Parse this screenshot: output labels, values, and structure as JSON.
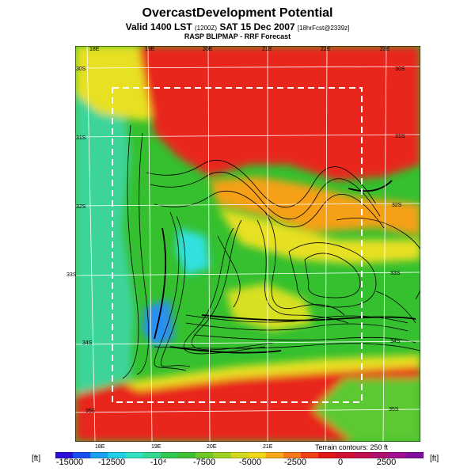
{
  "header": {
    "title": "OvercastDevelopment Potential",
    "valid_prefix": "Valid 1400 LST",
    "valid_paren": "(1200Z)",
    "valid_date": "SAT 15 Dec 2007",
    "valid_suffix": "[18hrFcst@2339z]",
    "model": "RASP BLIPMAP - RRF Forecast"
  },
  "map": {
    "lon_ticks_top": [
      "18E",
      "19E",
      "20E",
      "21E",
      "22E",
      "23E"
    ],
    "lon_ticks_bottom": [
      "18E",
      "19E",
      "20E",
      "21E"
    ],
    "lat_ticks_left": [
      "30S",
      "31S",
      "32S",
      "33S",
      "34S",
      "35S"
    ],
    "lat_ticks_right": [
      "30S",
      "31S",
      "32S",
      "33S",
      "34S",
      "35S"
    ],
    "terrain_note": "Terrain contours: 250 ft",
    "border_style": "dashed",
    "grid": true,
    "colors": {
      "high": "#e8251e",
      "mid": "#f7d410",
      "low": "#34c02f",
      "lowest": "#32d7b3",
      "contour": "#000000"
    }
  },
  "colorbar": {
    "unit_left": "[ft]",
    "unit_right": "[ft]",
    "labels": [
      "-15000",
      "-12500",
      "-10⁴",
      "-7500",
      "-5000",
      "-2500",
      "0",
      "2500"
    ],
    "colors": [
      "#2a10d8",
      "#1a50f0",
      "#1aa0f0",
      "#20d0e8",
      "#30e0c0",
      "#35d890",
      "#30c850",
      "#40c030",
      "#70c828",
      "#a0d020",
      "#d0d820",
      "#f0d818",
      "#f8a818",
      "#f87818",
      "#f04018",
      "#e01818",
      "#d01030",
      "#c01050",
      "#b01070",
      "#a01090",
      "#8010a0"
    ]
  }
}
